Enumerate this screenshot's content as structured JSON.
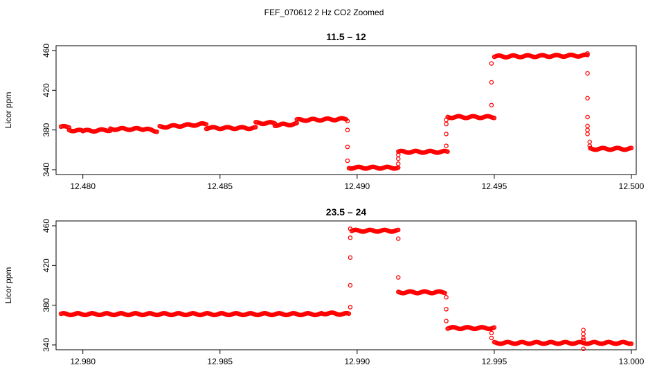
{
  "page_title": "FEF_070612  2 Hz CO2 Zoomed",
  "colors": {
    "points": "#ff0000",
    "axis": "#000000",
    "background": "#ffffff"
  },
  "chart_data": [
    {
      "type": "scatter",
      "title": "11.5 – 12",
      "ylabel": "Licor ppm",
      "xlabel": "",
      "xlim": [
        12.4792,
        12.5
      ],
      "ylim": [
        340,
        460
      ],
      "x_ticks": [
        12.48,
        12.485,
        12.49,
        12.495,
        12.5
      ],
      "x_tick_labels": [
        "12.480",
        "12.485",
        "12.490",
        "12.495",
        "12.500"
      ],
      "y_ticks": [
        340,
        380,
        420,
        460
      ],
      "y_tick_labels": [
        "340",
        "380",
        "420",
        "460"
      ],
      "grid": false,
      "marker": "open-circle",
      "segments": [
        {
          "x": [
            12.4792,
            12.4795
          ],
          "y": [
            383,
            383
          ]
        },
        {
          "x": [
            12.4795,
            12.48
          ],
          "y": [
            380,
            379
          ]
        },
        {
          "x": [
            12.48,
            12.481
          ],
          "y": [
            379,
            380
          ]
        },
        {
          "x": [
            12.481,
            12.4822
          ],
          "y": [
            381,
            381
          ]
        },
        {
          "x": [
            12.4822,
            12.4827
          ],
          "y": [
            381,
            379
          ]
        },
        {
          "x": [
            12.4828,
            12.4845
          ],
          "y": [
            383,
            386
          ]
        },
        {
          "x": [
            12.4845,
            12.4863
          ],
          "y": [
            382,
            382
          ]
        },
        {
          "x": [
            12.4863,
            12.487
          ],
          "y": [
            387,
            387
          ]
        },
        {
          "x": [
            12.487,
            12.4878
          ],
          "y": [
            385,
            386
          ]
        },
        {
          "x": [
            12.4878,
            12.4896
          ],
          "y": [
            390,
            391
          ]
        },
        {
          "x": [
            12.4897,
            12.4915
          ],
          "y": [
            342,
            342
          ]
        },
        {
          "x": [
            12.4915,
            12.4933
          ],
          "y": [
            358,
            358
          ]
        },
        {
          "x": [
            12.4933,
            12.495
          ],
          "y": [
            393,
            393
          ]
        },
        {
          "x": [
            12.495,
            12.4984
          ],
          "y": [
            454,
            455
          ]
        },
        {
          "x": [
            12.4985,
            12.5
          ],
          "y": [
            361,
            361
          ]
        }
      ],
      "transitions": [
        {
          "x": 12.48965,
          "y": [
            389,
            380,
            363,
            349
          ]
        },
        {
          "x": 12.4915,
          "y": [
            346,
            351,
            355
          ]
        },
        {
          "x": 12.49325,
          "y": [
            364,
            376,
            386,
            390
          ]
        },
        {
          "x": 12.4949,
          "y": [
            405,
            428,
            447
          ]
        },
        {
          "x": 12.4984,
          "y": [
            457,
            437,
            412,
            393,
            384,
            380,
            376
          ]
        },
        {
          "x": 12.49848,
          "y": [
            368,
            364
          ]
        }
      ]
    },
    {
      "type": "scatter",
      "title": "23.5 – 24",
      "ylabel": "Licor ppm",
      "xlabel": "",
      "xlim": [
        12.9792,
        13.0
      ],
      "ylim": [
        340,
        460
      ],
      "x_ticks": [
        12.98,
        12.985,
        12.99,
        12.995,
        13.0
      ],
      "x_tick_labels": [
        "12.980",
        "12.985",
        "12.990",
        "12.995",
        "13.000"
      ],
      "y_ticks": [
        340,
        380,
        420,
        460
      ],
      "y_tick_labels": [
        "340",
        "380",
        "420",
        "460"
      ],
      "grid": false,
      "marker": "open-circle",
      "segments": [
        {
          "x": [
            12.9792,
            12.9887
          ],
          "y": [
            371,
            371
          ]
        },
        {
          "x": [
            12.9887,
            12.9897
          ],
          "y": [
            372,
            371
          ]
        },
        {
          "x": [
            12.9898,
            12.9915
          ],
          "y": [
            455,
            455
          ]
        },
        {
          "x": [
            12.9915,
            12.9932
          ],
          "y": [
            393,
            393
          ]
        },
        {
          "x": [
            12.9933,
            12.995
          ],
          "y": [
            357,
            357
          ]
        },
        {
          "x": [
            12.995,
            13.0
          ],
          "y": [
            342,
            342
          ]
        }
      ],
      "transitions": [
        {
          "x": 12.98975,
          "y": [
            378,
            400,
            428,
            448,
            457
          ]
        },
        {
          "x": 12.9915,
          "y": [
            447,
            408
          ]
        },
        {
          "x": 12.99325,
          "y": [
            388,
            376,
            364
          ]
        },
        {
          "x": 12.9949,
          "y": [
            352,
            347
          ]
        },
        {
          "x": 12.99825,
          "y": [
            355,
            351,
            347,
            345,
            336
          ]
        }
      ]
    }
  ]
}
